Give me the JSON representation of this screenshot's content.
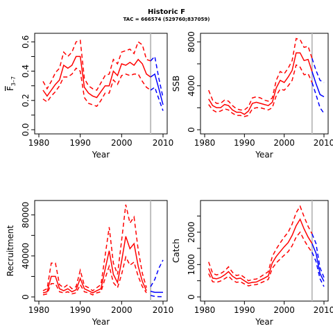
{
  "figure": {
    "title": "Historic F",
    "subtitle": "TAC = 666574 (529760;837059)"
  },
  "colors": {
    "history": "#ff0000",
    "projection": "#0000ff",
    "marker": "#bebebe",
    "axis": "#000000"
  },
  "chart_data": [
    {
      "id": "fbar",
      "type": "line",
      "title": "",
      "xlabel": "Year",
      "ylabel": "F̅ 3-7",
      "ylabel_main": "F",
      "ylabel_sub": "3–7",
      "xlim": [
        1980,
        2010
      ],
      "ylim": [
        0,
        0.63
      ],
      "xticks": [
        1980,
        1990,
        2000,
        2010
      ],
      "xtick_labels": [
        "1980",
        "1990",
        "2000",
        "2010"
      ],
      "yticks": [
        0,
        0.2,
        0.4,
        0.6
      ],
      "ytick_labels": [
        "0.0",
        "0.2",
        "0.4",
        "0.6"
      ],
      "minor_yticks": [
        0.1,
        0.3,
        0.5
      ],
      "marker_year": 2007,
      "history": {
        "x": [
          1981,
          1982,
          1983,
          1984,
          1985,
          1986,
          1987,
          1988,
          1989,
          1990,
          1991,
          1992,
          1993,
          1994,
          1995,
          1996,
          1997,
          1998,
          1999,
          2000,
          2001,
          2002,
          2003,
          2004,
          2005,
          2006,
          2007
        ],
        "median": [
          0.27,
          0.23,
          0.27,
          0.31,
          0.34,
          0.44,
          0.42,
          0.44,
          0.5,
          0.5,
          0.29,
          0.25,
          0.23,
          0.22,
          0.26,
          0.3,
          0.3,
          0.4,
          0.37,
          0.45,
          0.44,
          0.46,
          0.44,
          0.48,
          0.45,
          0.38,
          0.36
        ],
        "upper": [
          0.33,
          0.28,
          0.33,
          0.39,
          0.42,
          0.53,
          0.5,
          0.53,
          0.6,
          0.61,
          0.35,
          0.3,
          0.28,
          0.27,
          0.32,
          0.37,
          0.38,
          0.48,
          0.45,
          0.53,
          0.54,
          0.55,
          0.52,
          0.6,
          0.58,
          0.48,
          0.47
        ],
        "lower": [
          0.21,
          0.19,
          0.23,
          0.26,
          0.3,
          0.36,
          0.36,
          0.38,
          0.42,
          0.4,
          0.22,
          0.18,
          0.17,
          0.16,
          0.2,
          0.25,
          0.25,
          0.34,
          0.31,
          0.37,
          0.38,
          0.37,
          0.38,
          0.38,
          0.33,
          0.29,
          0.27
        ]
      },
      "projection": {
        "x": [
          2007,
          2008,
          2009,
          2010
        ],
        "median": [
          0.36,
          0.38,
          0.28,
          0.17
        ],
        "upper": [
          0.47,
          0.5,
          0.35,
          0.22
        ],
        "lower": [
          0.27,
          0.29,
          0.21,
          0.13
        ]
      }
    },
    {
      "id": "ssb",
      "type": "line",
      "title": "",
      "xlabel": "Year",
      "ylabel": "SSB",
      "xlim": [
        1980,
        2010
      ],
      "ylim": [
        0,
        8400
      ],
      "xticks": [
        1980,
        1990,
        2000,
        2010
      ],
      "xtick_labels": [
        "1980",
        "1990",
        "2000",
        "2010"
      ],
      "yticks": [
        0,
        4000,
        8000
      ],
      "ytick_labels": [
        "0",
        "4000",
        "8000"
      ],
      "minor_yticks": [
        2000,
        6000
      ],
      "marker_year": 2007,
      "history": {
        "x": [
          1981,
          1982,
          1983,
          1984,
          1985,
          1986,
          1987,
          1988,
          1989,
          1990,
          1991,
          1992,
          1993,
          1994,
          1995,
          1996,
          1997,
          1998,
          1999,
          2000,
          2001,
          2002,
          2003,
          2004,
          2005,
          2006,
          2007
        ],
        "median": [
          2800,
          2200,
          2000,
          2000,
          2300,
          2200,
          1800,
          1600,
          1600,
          1400,
          1700,
          2400,
          2500,
          2400,
          2300,
          2200,
          2500,
          3800,
          4500,
          4300,
          4800,
          5400,
          7000,
          7000,
          6300,
          6400,
          5300
        ],
        "upper": [
          3600,
          2700,
          2400,
          2400,
          2700,
          2600,
          2200,
          1900,
          1800,
          1800,
          2100,
          2900,
          3000,
          2900,
          2700,
          2600,
          2900,
          4500,
          5300,
          5100,
          5600,
          6300,
          8300,
          8200,
          7500,
          7600,
          6500
        ],
        "lower": [
          2300,
          1800,
          1600,
          1700,
          1900,
          1800,
          1500,
          1300,
          1300,
          1200,
          1300,
          1900,
          2000,
          2000,
          1900,
          1800,
          2000,
          3100,
          3700,
          3600,
          4000,
          4500,
          5900,
          5700,
          5000,
          5100,
          4300
        ]
      },
      "projection": {
        "x": [
          2007,
          2008,
          2009,
          2010
        ],
        "median": [
          5300,
          4200,
          3200,
          3000
        ],
        "upper": [
          6500,
          5400,
          4500,
          4300
        ],
        "lower": [
          4300,
          3200,
          2000,
          1500
        ]
      }
    },
    {
      "id": "recruitment",
      "type": "line",
      "title": "",
      "xlabel": "Year",
      "ylabel": "Recruitment",
      "xlim": [
        1980,
        2010
      ],
      "ylim": [
        0,
        90000
      ],
      "xticks": [
        1980,
        1990,
        2000,
        2010
      ],
      "xtick_labels": [
        "1980",
        "1990",
        "2000",
        "2010"
      ],
      "yticks": [
        0,
        40000,
        80000
      ],
      "ytick_labels": [
        "0",
        "40000",
        "80000"
      ],
      "minor_yticks": [
        20000,
        60000
      ],
      "marker_year": 2007,
      "history": {
        "x": [
          1981,
          1982,
          1983,
          1984,
          1985,
          1986,
          1987,
          1988,
          1989,
          1990,
          1991,
          1992,
          1993,
          1994,
          1995,
          1996,
          1997,
          1998,
          1999,
          2000,
          2001,
          2002,
          2003,
          2004,
          2005,
          2006
        ],
        "median": [
          4000,
          5000,
          20000,
          20000,
          8000,
          6000,
          8000,
          5000,
          7000,
          18000,
          8000,
          6000,
          4000,
          6000,
          8000,
          27000,
          45000,
          22000,
          14000,
          35000,
          59000,
          47000,
          52000,
          30000,
          15000,
          6000
        ],
        "upper": [
          6000,
          8000,
          33000,
          33000,
          12000,
          9000,
          12000,
          8000,
          10000,
          26000,
          11000,
          9000,
          6000,
          9000,
          12000,
          40000,
          68000,
          33000,
          22000,
          55000,
          90000,
          72000,
          78000,
          46000,
          23000,
          9000
        ],
        "lower": [
          2000,
          3000,
          13000,
          13000,
          5000,
          4000,
          5000,
          3000,
          4000,
          12000,
          5000,
          4000,
          2000,
          4000,
          5000,
          18000,
          30000,
          14000,
          9000,
          22000,
          39000,
          31000,
          34000,
          20000,
          10000,
          4000
        ]
      },
      "projection": {
        "x": [
          2007,
          2008,
          2009,
          2010
        ],
        "median": [
          5500,
          4500,
          4500,
          4500
        ],
        "upper": [
          10000,
          17000,
          28000,
          36000
        ],
        "lower": [
          1500,
          500,
          300,
          200
        ]
      }
    },
    {
      "id": "catch",
      "type": "line",
      "title": "",
      "xlabel": "Year",
      "ylabel": "Catch",
      "xlim": [
        1980,
        2010
      ],
      "ylim": [
        0,
        2850
      ],
      "xticks": [
        1980,
        1990,
        2000,
        2010
      ],
      "xtick_labels": [
        "1980",
        "1990",
        "2000",
        "2010"
      ],
      "yticks": [
        0,
        1000,
        2000
      ],
      "ytick_labels": [
        "0",
        "1000",
        "2000"
      ],
      "minor_yticks": [
        500,
        1500,
        2500
      ],
      "marker_year": 2007,
      "history": {
        "x": [
          1981,
          1982,
          1983,
          1984,
          1985,
          1986,
          1987,
          1988,
          1989,
          1990,
          1991,
          1992,
          1993,
          1994,
          1995,
          1996,
          1997,
          1998,
          1999,
          2000,
          2001,
          2002,
          2003,
          2004,
          2005,
          2006,
          2007
        ],
        "median": [
          880,
          580,
          560,
          600,
          680,
          780,
          640,
          560,
          580,
          500,
          420,
          450,
          460,
          520,
          580,
          650,
          1050,
          1250,
          1400,
          1550,
          1680,
          1900,
          2200,
          2400,
          2100,
          1850,
          1650
        ],
        "upper": [
          1080,
          730,
          680,
          720,
          800,
          930,
          760,
          660,
          690,
          600,
          500,
          540,
          550,
          620,
          700,
          780,
          1250,
          1480,
          1670,
          1850,
          2000,
          2250,
          2600,
          2800,
          2480,
          2180,
          1950
        ],
        "lower": [
          720,
          470,
          450,
          490,
          560,
          640,
          520,
          450,
          470,
          400,
          340,
          370,
          380,
          430,
          480,
          540,
          880,
          1050,
          1170,
          1290,
          1400,
          1580,
          1850,
          2000,
          1760,
          1550,
          1380
        ]
      },
      "projection": {
        "x": [
          2007,
          2008,
          2009,
          2010
        ],
        "median": [
          1650,
          1350,
          720,
          480
        ],
        "upper": [
          1950,
          1650,
          900,
          600
        ],
        "lower": [
          1380,
          1100,
          560,
          320
        ]
      }
    }
  ]
}
